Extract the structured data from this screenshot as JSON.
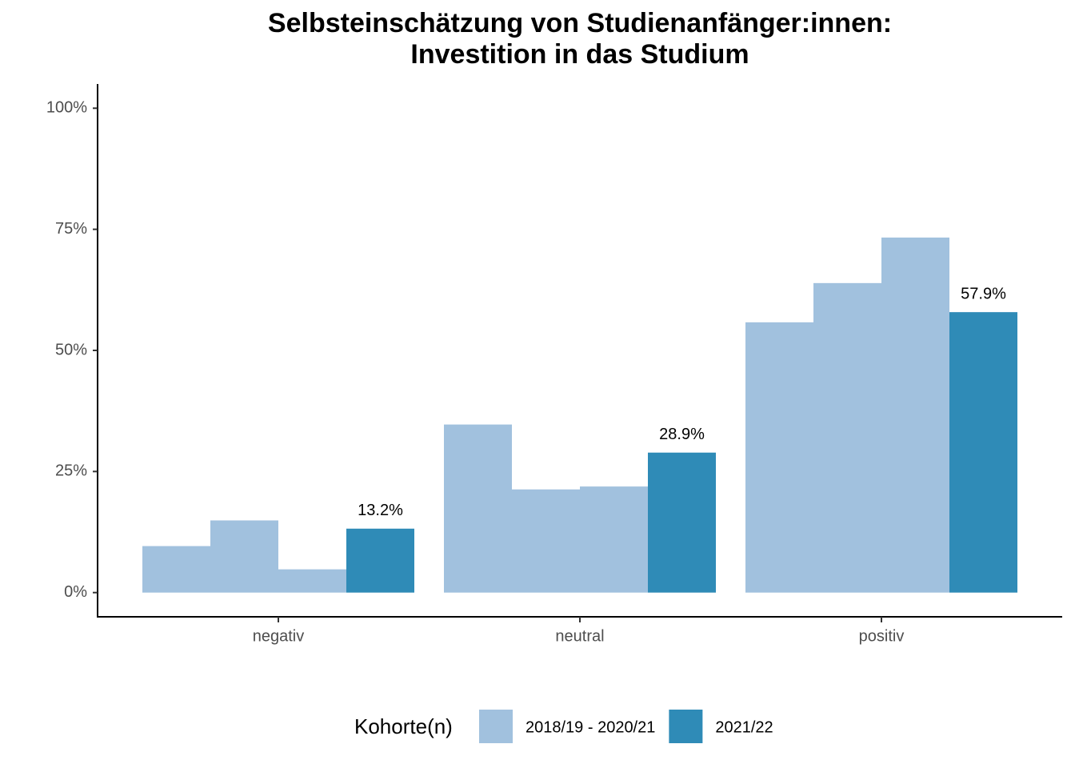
{
  "chart_data": {
    "type": "bar",
    "title": "Selbsteinschätzung von Studienanfänger:innen:",
    "subtitle": "Investition in das Studium",
    "categories": [
      "negativ",
      "neutral",
      "positiv"
    ],
    "legend_title": "Kohorte(n)",
    "series": [
      {
        "name": "2018/19 - 2020/21",
        "color": "#a1c1de",
        "values": [
          [
            9.6,
            14.9,
            4.8
          ],
          [
            34.7,
            21.3,
            21.9
          ],
          [
            55.8,
            63.9,
            73.3
          ]
        ]
      },
      {
        "name": "2021/22",
        "color": "#2f8bb7",
        "values": [
          13.2,
          28.9,
          57.9
        ],
        "value_labels": [
          "13.2%",
          "28.9%",
          "57.9%"
        ]
      }
    ],
    "ylim": [
      -5,
      105
    ],
    "yticks": [
      {
        "value": 0,
        "label": "0%"
      },
      {
        "value": 25,
        "label": "25%"
      },
      {
        "value": 50,
        "label": "50%"
      },
      {
        "value": 75,
        "label": "75%"
      },
      {
        "value": 100,
        "label": "100%"
      }
    ],
    "grid": false,
    "legend": "bottom"
  }
}
